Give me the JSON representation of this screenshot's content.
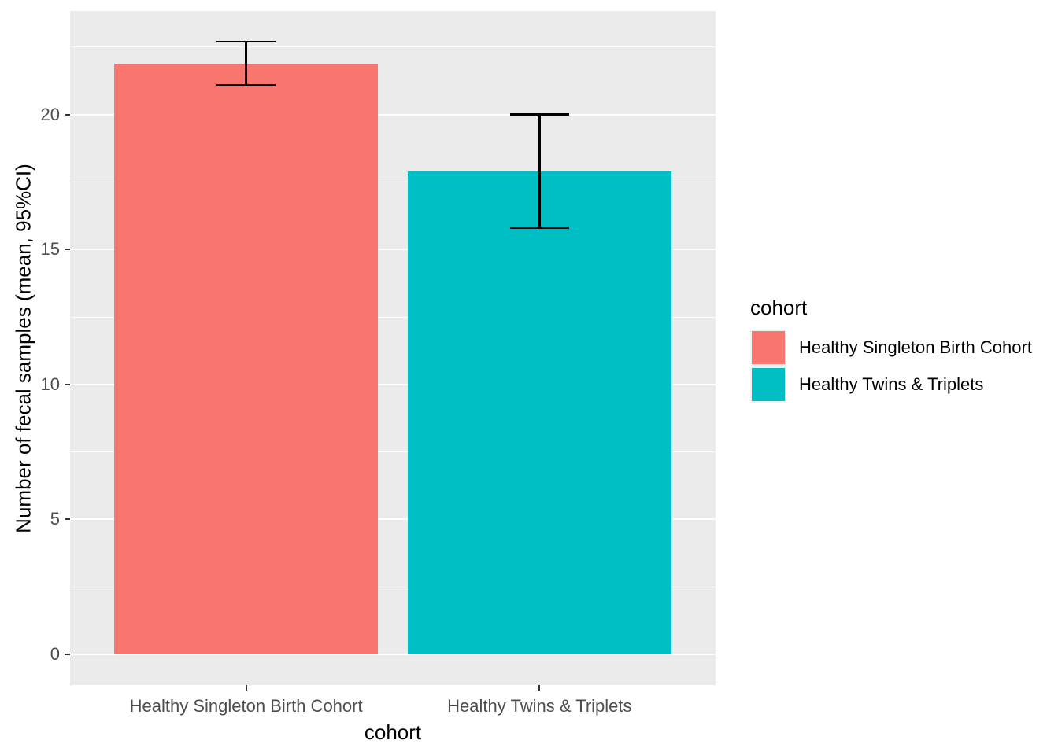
{
  "chart_data": {
    "type": "bar",
    "categories": [
      "Healthy Singleton Birth Cohort",
      "Healthy Twins & Triplets"
    ],
    "values": [
      21.9,
      17.9
    ],
    "error_low": [
      21.1,
      15.8
    ],
    "error_high": [
      22.7,
      20.0
    ],
    "bar_colors": [
      "#F8766D",
      "#00BFC4"
    ],
    "title": "",
    "xlabel": "cohort",
    "ylabel": "Number of fecal samples (mean, 95%CI)",
    "ytick_labels": [
      "0",
      "5",
      "10",
      "15",
      "20"
    ],
    "ytick_values": [
      0,
      5,
      10,
      15,
      20
    ],
    "y_minor_values": [
      2.5,
      7.5,
      12.5,
      17.5,
      22.5
    ],
    "ylim": [
      -1.14,
      23.84
    ],
    "grid": "on",
    "legend_position": "right",
    "legend": {
      "title": "cohort",
      "entries": [
        {
          "label": "Healthy Singleton Birth Cohort",
          "color": "#F8766D"
        },
        {
          "label": "Healthy Twins & Triplets",
          "color": "#00BFC4"
        }
      ]
    },
    "colors": {
      "panel_background": "#EBEBEB",
      "gridline": "#FFFFFF",
      "tick_label": "#4D4D4D",
      "axis_title": "#000000",
      "error_bar": "#000000"
    }
  }
}
